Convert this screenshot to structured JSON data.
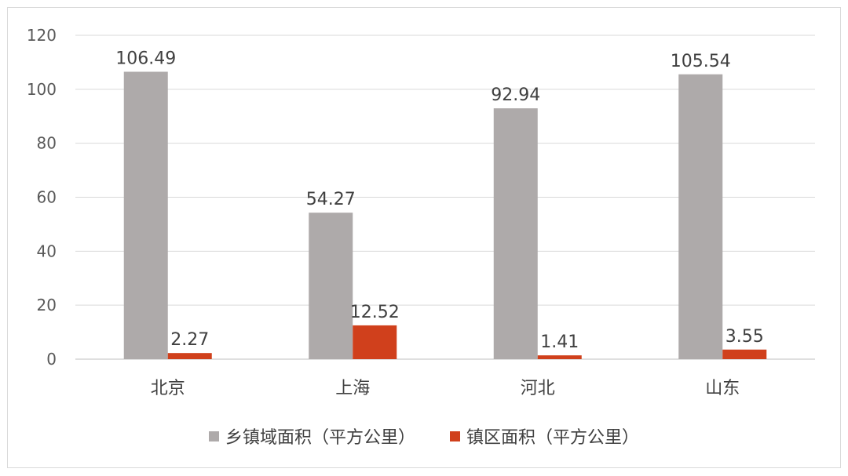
{
  "chart_data": {
    "type": "bar",
    "categories": [
      "北京",
      "上海",
      "河北",
      "山东"
    ],
    "series": [
      {
        "name": "乡镇域面积（平方公里）",
        "values": [
          106.49,
          54.27,
          92.94,
          105.54
        ],
        "color": "#aeaaaa"
      },
      {
        "name": "镇区面积（平方公里）",
        "values": [
          2.27,
          12.52,
          1.41,
          3.55
        ],
        "color": "#d0401c"
      }
    ],
    "yticks": [
      "0",
      "20",
      "40",
      "60",
      "80",
      "100",
      "120"
    ],
    "ylim": [
      0,
      120
    ],
    "grid": true,
    "legend": "bottom"
  }
}
